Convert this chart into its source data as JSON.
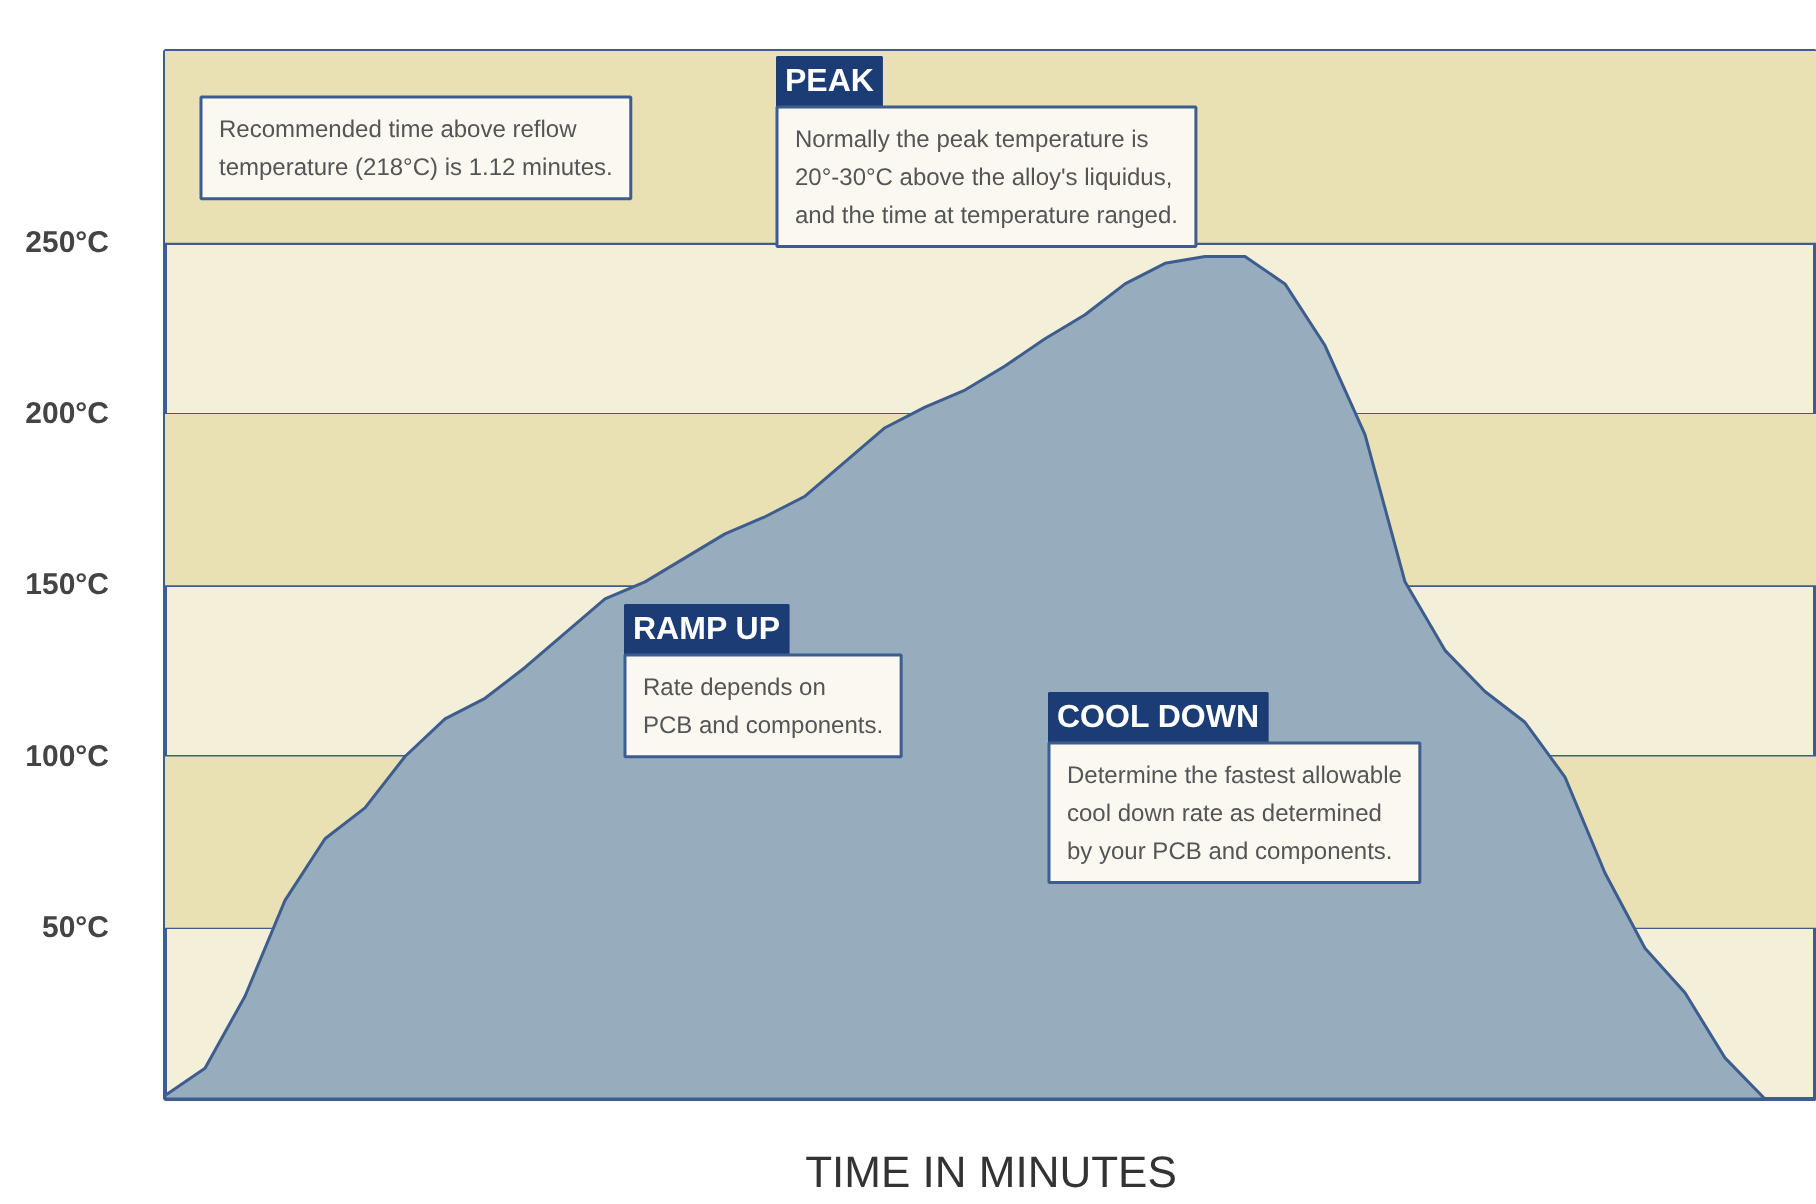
{
  "chart_data": {
    "type": "area",
    "categories": [
      null,
      null,
      null,
      null,
      null,
      null,
      null,
      null,
      null,
      null,
      null,
      null,
      null,
      null,
      null,
      null,
      null,
      null,
      null,
      null,
      null,
      null,
      null,
      null,
      null,
      null,
      null,
      null,
      null,
      null,
      null,
      null,
      null,
      null,
      null,
      null,
      null,
      null,
      null,
      null,
      null
    ],
    "values": [
      1,
      9,
      30,
      58,
      76,
      85,
      100,
      111,
      117,
      126,
      136,
      146,
      151,
      158,
      165,
      170,
      176,
      186,
      196,
      202,
      207,
      214,
      222,
      229,
      238,
      244,
      246,
      246,
      238,
      220,
      194,
      151,
      131,
      119,
      110,
      94,
      66,
      44,
      31,
      12,
      0
    ],
    "color": "#97adbe",
    "xlabel": "TIME IN MINUTES",
    "ylim": [
      0,
      306
    ],
    "yticks": [
      {
        "value": 50,
        "label": "50°C"
      },
      {
        "value": 100,
        "label": "100°C"
      },
      {
        "value": 150,
        "label": "150°C"
      },
      {
        "value": 200,
        "label": "200°C"
      },
      {
        "value": 250,
        "label": "250°C"
      }
    ],
    "grid": "y",
    "tick_labels": "y",
    "bands": [
      {
        "axis": "y",
        "from": 50,
        "to": 100,
        "color": "#e9e1b4"
      },
      {
        "axis": "y",
        "from": 150,
        "to": 200,
        "color": "#e9e1b4"
      },
      {
        "axis": "y",
        "from": 250,
        "to": 306,
        "color": "#e9e1b4"
      }
    ],
    "annotations": [
      "Recommended time above reflow\ntemperature (218°C) is 1.12 minutes.",
      "PEAK\nNormally the peak temperature is\n20°-30°C above the alloy's liquidus,\nand the time at temperature ranged.",
      "RAMP UP\nRate depends on\nPCB and components.",
      "COOL DOWN\nDetermine the fastest allowable\ncool down rate as determined\nby your PCB and components."
    ]
  }
}
